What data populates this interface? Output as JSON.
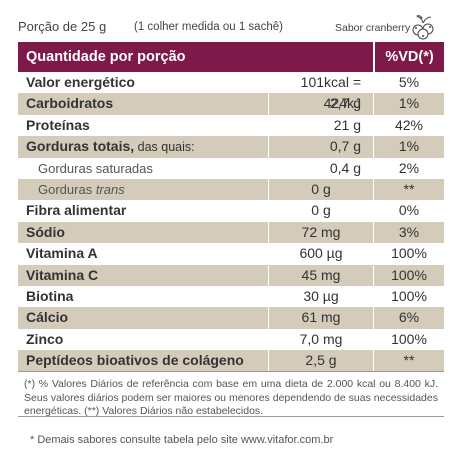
{
  "header": {
    "portion": "Porção de 25 g",
    "measure": "(1 colher medida ou 1 sachê)",
    "flavor": "Sabor cranberry",
    "flavor_icon": "cranberry-icon"
  },
  "table": {
    "col_quantity": "Quantidade por porção",
    "col_vd": "%VD(*)",
    "rows": [
      {
        "name": "Valor energético",
        "amount": "101kcal = 424kJ",
        "vd": "5%"
      },
      {
        "name": "Carboidratos",
        "amount": "2,7 g",
        "vd": "1%"
      },
      {
        "name": "Proteínas",
        "amount": "21 g",
        "vd": "42%"
      },
      {
        "name": "Gorduras totais,",
        "qualifier": " das quais:",
        "amount": "0,7 g",
        "vd": "1%"
      },
      {
        "name": "Gorduras saturadas",
        "amount": "0,4 g",
        "vd": "2%"
      },
      {
        "name": "Gorduras ",
        "qualifier": "trans",
        "amount": "0 g",
        "vd": "**"
      },
      {
        "name": "Fibra alimentar",
        "amount": "0 g",
        "vd": "0%"
      },
      {
        "name": "Sódio",
        "amount": "72 mg",
        "vd": "3%"
      },
      {
        "name": "Vitamina A",
        "amount": "600 µg",
        "vd": "100%"
      },
      {
        "name": "Vitamina C",
        "amount": "45 mg",
        "vd": "100%"
      },
      {
        "name": "Biotina",
        "amount": "30 µg",
        "vd": "100%"
      },
      {
        "name": "Cálcio",
        "amount": "61 mg",
        "vd": "6%"
      },
      {
        "name": "Zinco",
        "amount": "7,0 mg",
        "vd": "100%"
      },
      {
        "name": "Peptídeos bioativos de colágeno",
        "amount": "2,5 g",
        "vd": "**"
      }
    ]
  },
  "footnote": "(*) % Valores Diários de referência com base em uma dieta de 2.000 kcal ou 8.400 kJ. Seus valores diários podem ser maiores ou menores dependendo de suas necessidades energéticas. (**) Valores Diários não estabelecidos.",
  "bottom_note": "* Demais sabores consulte tabela pelo site www.vitafor.com.br"
}
